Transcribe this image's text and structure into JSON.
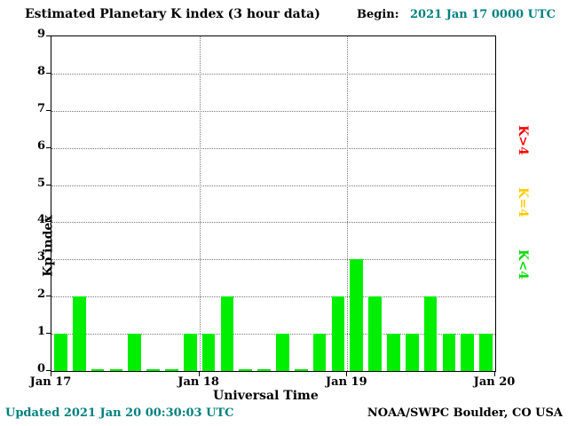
{
  "header": {
    "title": "Estimated Planetary K index (3 hour data)",
    "begin_label": "Begin:",
    "begin_value": "2021 Jan 17 0000 UTC"
  },
  "footer": {
    "updated": "Updated 2021 Jan 20 00:30:03 UTC",
    "source": "NOAA/SWPC Boulder, CO USA"
  },
  "colors": {
    "bar": "#00ee00",
    "accent_teal": "#008080",
    "legend_high": "#ff0000",
    "legend_mid": "#ffcc00",
    "legend_low": "#00dd00"
  },
  "chart_data": {
    "type": "bar",
    "title": "Estimated Planetary K index (3 hour data)",
    "xlabel": "Universal Time",
    "ylabel": "Kp index",
    "ylim": [
      0,
      9
    ],
    "yticks": [
      0,
      1,
      2,
      3,
      4,
      5,
      6,
      7,
      8,
      9
    ],
    "xticks": [
      "Jan 17",
      "Jan 18",
      "Jan 19",
      "Jan 20"
    ],
    "interval_hours": 3,
    "x_start": "2021 Jan 17 0000 UTC",
    "values": [
      1,
      2,
      0,
      0,
      1,
      0,
      0,
      1,
      1,
      2,
      0,
      0,
      1,
      0,
      1,
      2,
      3,
      2,
      1,
      1,
      2,
      1,
      1,
      1
    ],
    "bar_color": "#00ee00",
    "grid": {
      "horizontal": "dotted at each integer 1-8",
      "vertical": "dotted at day boundaries Jan 18, Jan 19"
    },
    "legend": [
      {
        "label": "K>4",
        "color": "#ff0000"
      },
      {
        "label": "K=4",
        "color": "#ffcc00"
      },
      {
        "label": "K<4",
        "color": "#00dd00"
      }
    ],
    "legend_position": "right, rotated 90deg"
  }
}
